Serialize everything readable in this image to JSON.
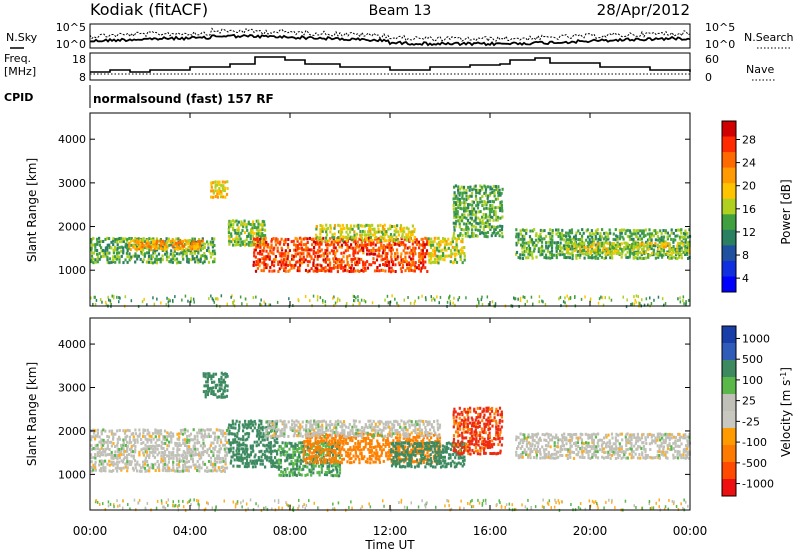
{
  "header": {
    "station": "Kodiak (fitACF)",
    "beam": "Beam 13",
    "date": "28/Apr/2012"
  },
  "noise_panel": {
    "left_label": "N.Sky",
    "right_label": "N.Search",
    "left_ticks": [
      "10^5",
      "10^0"
    ],
    "right_ticks": [
      "10^5",
      "10^0"
    ]
  },
  "freq_panel": {
    "left_label_1": "Freq.",
    "left_label_2": "[MHz]",
    "left_ticks": [
      "18",
      "8"
    ],
    "right_label": "Nave",
    "right_ticks": [
      "60",
      "0"
    ]
  },
  "cpid": {
    "label": "CPID",
    "text": "normalsound (fast) 157 RF"
  },
  "x_axis": {
    "label": "Time UT",
    "tick_labels": [
      "00:00",
      "04:00",
      "08:00",
      "12:00",
      "16:00",
      "20:00",
      "00:00"
    ]
  },
  "chart_data": [
    {
      "type": "heatmap",
      "name_panel": "power",
      "ylabel": "Slant Range [km]",
      "y_ticks": [
        1000,
        2000,
        3000,
        4000
      ],
      "ylim": [
        180,
        4600
      ],
      "xlim_hours": [
        0,
        24
      ],
      "colorbar_label": "Power [dB]",
      "colorbar_ticks": [
        "28",
        "24",
        "20",
        "16",
        "12",
        "8",
        "4"
      ],
      "colorbar_colors": [
        "#d00000",
        "#ff2a00",
        "#ff6a00",
        "#ff9a00",
        "#ffc400",
        "#b0d020",
        "#40a040",
        "#2a8060",
        "#2050a0",
        "#1030e0",
        "#0000ff"
      ],
      "bands": [
        {
          "t0": 0.0,
          "t1": 5.0,
          "r0": 1200,
          "r1": 1800,
          "level": 12
        },
        {
          "t0": 1.5,
          "t1": 4.5,
          "r0": 1500,
          "r1": 1750,
          "level": 20
        },
        {
          "t0": 4.8,
          "t1": 5.5,
          "r0": 2700,
          "r1": 3100,
          "level": 18
        },
        {
          "t0": 5.5,
          "t1": 7.0,
          "r0": 1600,
          "r1": 2200,
          "level": 14
        },
        {
          "t0": 6.5,
          "t1": 13.5,
          "r0": 1000,
          "r1": 1800,
          "level": 26
        },
        {
          "t0": 9.0,
          "t1": 13.0,
          "r0": 1700,
          "r1": 2100,
          "level": 16
        },
        {
          "t0": 13.5,
          "t1": 15.0,
          "r0": 1200,
          "r1": 1800,
          "level": 16
        },
        {
          "t0": 14.5,
          "t1": 16.5,
          "r0": 1800,
          "r1": 3000,
          "level": 12
        },
        {
          "t0": 17.0,
          "t1": 24.0,
          "r0": 1300,
          "r1": 2000,
          "level": 12
        },
        {
          "t0": 19.0,
          "t1": 24.0,
          "r0": 1400,
          "r1": 1700,
          "level": 16
        }
      ]
    },
    {
      "type": "heatmap",
      "name_panel": "velocity",
      "ylabel": "Slant Range [km]",
      "y_ticks": [
        1000,
        2000,
        3000,
        4000
      ],
      "ylim": [
        180,
        4600
      ],
      "xlim_hours": [
        0,
        24
      ],
      "colorbar_label": "Velocity [m s",
      "colorbar_label_sup": "-1",
      "colorbar_label_end": "]",
      "colorbar_ticks": [
        "1000",
        "500",
        "100",
        "25",
        "-25",
        "-100",
        "-500",
        "-1000"
      ],
      "colorbar_colors": [
        "#1a3ea8",
        "#2f5cb8",
        "#3d8a60",
        "#5ab84a",
        "#c0c0b8",
        "#c8c8c0",
        "#ff9a00",
        "#ff7a00",
        "#ff4a00",
        "#ee1010"
      ],
      "bands": [
        {
          "t0": 0.0,
          "t1": 5.5,
          "r0": 1100,
          "r1": 2100,
          "level": 0
        },
        {
          "t0": 4.5,
          "t1": 5.5,
          "r0": 2800,
          "r1": 3400,
          "level": 300
        },
        {
          "t0": 5.5,
          "t1": 7.5,
          "r0": 1200,
          "r1": 2300,
          "level": 300
        },
        {
          "t0": 7.5,
          "t1": 10.0,
          "r0": 1000,
          "r1": 1800,
          "level": 100
        },
        {
          "t0": 8.5,
          "t1": 14.0,
          "r0": 1300,
          "r1": 2000,
          "level": -250
        },
        {
          "t0": 12.0,
          "t1": 15.0,
          "r0": 1200,
          "r1": 1800,
          "level": 300
        },
        {
          "t0": 14.5,
          "t1": 16.5,
          "r0": 1500,
          "r1": 2600,
          "level": -600
        },
        {
          "t0": 17.0,
          "t1": 24.0,
          "r0": 1400,
          "r1": 2000,
          "level": 0
        },
        {
          "t0": 7.0,
          "t1": 14.0,
          "r0": 1900,
          "r1": 2300,
          "level": 0
        }
      ]
    }
  ]
}
